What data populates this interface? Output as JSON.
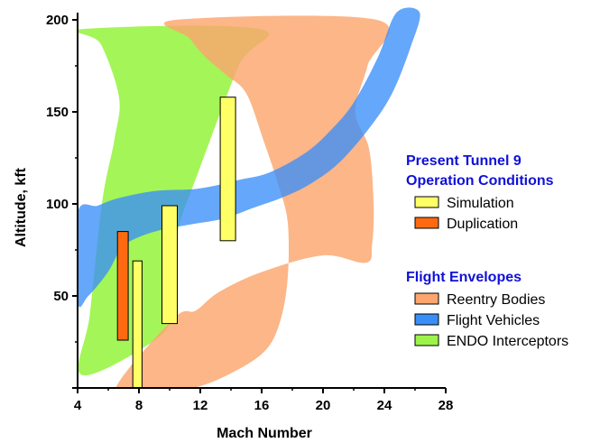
{
  "chart_data": {
    "type": "area",
    "title": "",
    "xlabel": "Mach Number",
    "ylabel": "Altitude, kft",
    "xlim": [
      4,
      28
    ],
    "ylim": [
      0,
      200
    ],
    "xticks": [
      4,
      8,
      12,
      16,
      20,
      24,
      28
    ],
    "yticks": [
      50,
      100,
      150,
      200
    ],
    "grid": false,
    "legend_position": "right",
    "legend_groups": [
      {
        "heading": "Present Tunnel 9 Operation Conditions",
        "heading_lines": [
          "Present Tunnel 9",
          "Operation Conditions"
        ],
        "heading_color": "#1010d8",
        "entries": [
          {
            "label": "Simulation",
            "color": "#ffff66",
            "series": "Simulation"
          },
          {
            "label": "Duplication",
            "color": "#ff6a10",
            "series": "Duplication"
          }
        ]
      },
      {
        "heading": "Flight Envelopes",
        "heading_lines": [
          "Flight Envelopes"
        ],
        "heading_color": "#1010d8",
        "entries": [
          {
            "label": "Reentry Bodies",
            "color": "#fba66e",
            "series": "Reentry Bodies"
          },
          {
            "label": "Flight Vehicles",
            "color": "#3a8ef8",
            "series": "Flight Vehicles"
          },
          {
            "label": "ENDO Interceptors",
            "color": "#9cf44a",
            "series": "ENDO Interceptors"
          }
        ]
      }
    ],
    "envelopes": [
      {
        "name": "ENDO Interceptors",
        "color": "#9cf44a",
        "opacity": 0.92,
        "outline": [
          [
            4.3,
            195
          ],
          [
            15.9,
            195
          ],
          [
            14.5,
            175
          ],
          [
            11.9,
            118
          ],
          [
            10.6,
            88
          ],
          [
            10.3,
            69
          ],
          [
            10.2,
            44
          ],
          [
            9.2,
            27
          ],
          [
            4.3,
            7
          ],
          [
            4.8,
            40
          ],
          [
            5.6,
            101
          ],
          [
            6.4,
            135
          ],
          [
            6.7,
            158
          ],
          [
            5.5,
            187
          ],
          [
            4.3,
            195
          ]
        ]
      },
      {
        "name": "Reentry Bodies",
        "color": "#fba66e",
        "opacity": 0.82,
        "outline": [
          [
            10.4,
            200
          ],
          [
            23.5,
            200
          ],
          [
            22.9,
            175
          ],
          [
            22.1,
            150
          ],
          [
            23.0,
            130
          ],
          [
            23.3,
            100
          ],
          [
            23.2,
            78
          ],
          [
            22.8,
            68
          ],
          [
            20.0,
            72
          ],
          [
            16.0,
            63
          ],
          [
            13.2,
            52
          ],
          [
            11.7,
            42
          ],
          [
            10.3,
            38
          ],
          [
            6.5,
            0
          ],
          [
            9.0,
            0
          ],
          [
            11.5,
            0
          ],
          [
            14.0,
            8
          ],
          [
            16.2,
            20
          ],
          [
            17.2,
            36
          ],
          [
            17.7,
            60
          ],
          [
            17.7,
            90
          ],
          [
            17.1,
            110
          ],
          [
            16.1,
            135
          ],
          [
            15.0,
            160
          ],
          [
            13.7,
            170
          ],
          [
            12.3,
            180
          ],
          [
            11.3,
            190
          ],
          [
            10.4,
            200
          ]
        ]
      },
      {
        "name": "Flight Vehicles",
        "color": "#3a8ef8",
        "opacity": 0.78,
        "outline": [
          [
            4.0,
            95
          ],
          [
            5.3,
            99
          ],
          [
            6.6,
            103
          ],
          [
            9.0,
            107
          ],
          [
            11.5,
            108
          ],
          [
            13.0,
            110
          ],
          [
            14.5,
            113
          ],
          [
            16.5,
            117
          ],
          [
            18.9,
            128
          ],
          [
            20.5,
            140
          ],
          [
            22.0,
            155
          ],
          [
            23.6,
            180
          ],
          [
            24.8,
            204
          ],
          [
            26.3,
            204
          ],
          [
            25.7,
            185
          ],
          [
            24.5,
            160
          ],
          [
            23.0,
            141
          ],
          [
            21.0,
            122
          ],
          [
            19.0,
            110
          ],
          [
            17.2,
            103
          ],
          [
            15.5,
            98
          ],
          [
            13.5,
            92
          ],
          [
            11.5,
            89
          ],
          [
            9.5,
            86
          ],
          [
            8.0,
            82
          ],
          [
            6.9,
            77
          ],
          [
            6.5,
            71
          ],
          [
            5.9,
            62
          ],
          [
            4.7,
            50
          ],
          [
            4.0,
            47
          ],
          [
            4.0,
            95
          ]
        ]
      }
    ],
    "conditions": [
      {
        "name": "Duplication",
        "type": "range_bar",
        "color": "#ff6a10",
        "x_range": [
          6.6,
          7.3
        ],
        "y_range": [
          26,
          85
        ]
      },
      {
        "name": "Simulation",
        "type": "range_bar",
        "color": "#ffff66",
        "x_range": [
          7.6,
          8.2
        ],
        "y_range": [
          0,
          69
        ]
      },
      {
        "name": "Simulation",
        "type": "range_bar",
        "color": "#ffff66",
        "x_range": [
          9.5,
          10.5
        ],
        "y_range": [
          35,
          99
        ]
      },
      {
        "name": "Simulation",
        "type": "range_bar",
        "color": "#ffff66",
        "x_range": [
          13.3,
          14.3
        ],
        "y_range": [
          80,
          158
        ]
      }
    ]
  }
}
